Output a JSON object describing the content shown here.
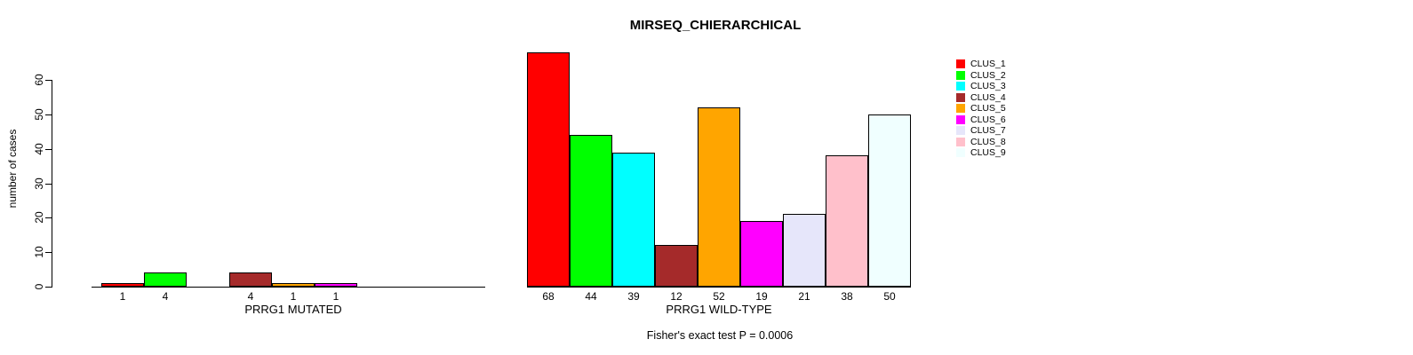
{
  "chart_data": {
    "type": "bar",
    "title": "MIRSEQ_CHIERARCHICAL",
    "ylabel": "number of cases",
    "xlabel": "",
    "ylim": [
      0,
      60
    ],
    "yticks": [
      0,
      10,
      20,
      30,
      40,
      50,
      60
    ],
    "grid": false,
    "legend_position": "right",
    "legend_entries": [
      {
        "label": "CLUS_1",
        "color": "#FF0000"
      },
      {
        "label": "CLUS_2",
        "color": "#00FF00"
      },
      {
        "label": "CLUS_3",
        "color": "#00FFFF"
      },
      {
        "label": "CLUS_4",
        "color": "#A52A2A"
      },
      {
        "label": "CLUS_5",
        "color": "#FFA500"
      },
      {
        "label": "CLUS_6",
        "color": "#FF00FF"
      },
      {
        "label": "CLUS_7",
        "color": "#E6E6FA"
      },
      {
        "label": "CLUS_8",
        "color": "#FFC0CB"
      },
      {
        "label": "CLUS_9",
        "color": "#F0FFFF"
      }
    ],
    "groups": [
      {
        "label": "PRRG1 MUTATED",
        "values": [
          1,
          4,
          0,
          4,
          1,
          1,
          0,
          0,
          0
        ]
      },
      {
        "label": "PRRG1 WILD-TYPE",
        "values": [
          68,
          44,
          39,
          12,
          52,
          19,
          21,
          38,
          50
        ]
      }
    ],
    "bar_value_labels": "shown below each nonzero bar",
    "annotation": "Fisher's exact test P = 0.0006"
  }
}
